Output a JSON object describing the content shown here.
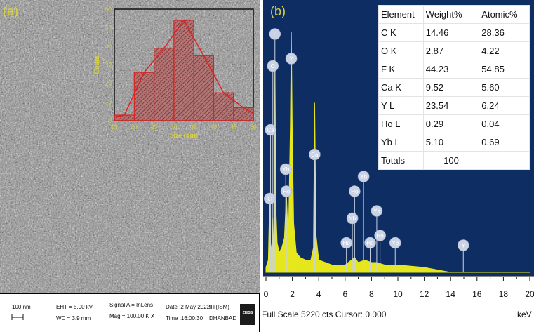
{
  "panel_a": {
    "label": "(a)",
    "info_bar": {
      "scale_bar": "100 nm",
      "eht": "EHT = 5.00 kV",
      "wd": "WD = 3.9 mm",
      "signal": "Signal A = InLens",
      "mag": "Mag = 100.00 K X",
      "date": "Date :2 May 2022",
      "time": "Time :16:00:30",
      "institution_1": "IIT(ISM)",
      "institution_2": "DHANBAD",
      "logo": "ZEISS"
    }
  },
  "panel_b": {
    "label": "(b)",
    "footer": "Full Scale 5220 cts Cursor: 0.000",
    "x_unit": "keV",
    "table": {
      "headers": [
        "Element",
        "Weight%",
        "Atomic%"
      ],
      "rows": [
        [
          "C K",
          "14.46",
          "28.36"
        ],
        [
          "O K",
          "2.87",
          "4.22"
        ],
        [
          "F K",
          "44.23",
          "54.85"
        ],
        [
          "Ca K",
          "9.52",
          "5.60"
        ],
        [
          "Y L",
          "23.54",
          "6.24"
        ],
        [
          "Ho L",
          "0.29",
          "0.04"
        ],
        [
          "Yb L",
          "5.10",
          "0.69"
        ]
      ],
      "totals_label": "Totals",
      "totals_value": "100"
    }
  },
  "colors": {
    "spectrum_bg": "#0e2d62",
    "spectrum_fill": "#e6e61c",
    "histogram_bar": "#b03a3a",
    "histogram_line": "#e02020",
    "label_yellow": "#d8d245"
  },
  "chart_data": [
    {
      "type": "bar",
      "title": "",
      "xlabel": "Size (nm)",
      "ylabel": "Count",
      "xlim": [
        15,
        50
      ],
      "ylim": [
        0,
        60
      ],
      "x_ticks": [
        15,
        20,
        25,
        30,
        35,
        40,
        45,
        50
      ],
      "y_ticks": [
        0,
        10,
        20,
        30,
        40,
        50,
        60
      ],
      "bin_edges": [
        15,
        20,
        25,
        30,
        35,
        40,
        45,
        50
      ],
      "values": [
        3,
        26,
        39,
        54,
        35,
        15,
        7
      ],
      "fit_curve": {
        "type": "line",
        "x": [
          15,
          17.5,
          22.5,
          27.5,
          32.5,
          37.5,
          42.5,
          47.5,
          50
        ],
        "y": [
          2,
          3,
          26,
          39,
          54,
          35,
          15,
          7,
          4
        ]
      }
    },
    {
      "type": "area",
      "title": "",
      "xlabel": "keV",
      "xlim": [
        0,
        20
      ],
      "x_ticks": [
        0,
        2,
        4,
        6,
        8,
        10,
        12,
        14,
        16,
        18,
        20
      ],
      "full_scale_counts": 5220,
      "x": [
        0.0,
        0.18,
        0.28,
        0.35,
        0.45,
        0.52,
        0.6,
        0.68,
        0.76,
        0.85,
        1.0,
        1.2,
        1.4,
        1.55,
        1.7,
        1.85,
        1.92,
        2.0,
        2.1,
        2.3,
        2.6,
        3.0,
        3.4,
        3.6,
        3.69,
        3.8,
        4.0,
        4.5,
        5.0,
        6.0,
        6.72,
        7.0,
        7.5,
        8.0,
        8.4,
        9.0,
        10.0,
        12.0,
        14.0,
        14.96,
        16.0,
        20.0
      ],
      "y": [
        0.02,
        0.05,
        0.3,
        0.12,
        0.08,
        0.22,
        0.06,
        0.85,
        0.25,
        0.12,
        0.08,
        0.1,
        0.14,
        0.32,
        0.12,
        0.6,
        0.98,
        0.55,
        0.2,
        0.08,
        0.06,
        0.05,
        0.05,
        0.1,
        0.69,
        0.15,
        0.05,
        0.04,
        0.03,
        0.03,
        0.06,
        0.04,
        0.05,
        0.04,
        0.04,
        0.03,
        0.03,
        0.02,
        0.0,
        0.0,
        0.0,
        0.0
      ],
      "peak_markers": [
        {
          "label": "C",
          "x": 0.28,
          "level": 0.3
        },
        {
          "label": "O",
          "x": 0.52,
          "level": 0.84
        },
        {
          "label": "F",
          "x": 0.68,
          "level": 0.97
        },
        {
          "label": "Y",
          "x": 1.92,
          "level": 0.87
        },
        {
          "label": "Ca",
          "x": 0.35,
          "level": 0.58
        },
        {
          "label": "Ca",
          "x": 3.69,
          "level": 0.48
        },
        {
          "label": "Yb",
          "x": 1.5,
          "level": 0.42
        },
        {
          "label": "Ho",
          "x": 1.55,
          "level": 0.33
        },
        {
          "label": "Yb",
          "x": 7.4,
          "level": 0.39
        },
        {
          "label": "Ho",
          "x": 6.72,
          "level": 0.33
        },
        {
          "label": "Yb",
          "x": 6.55,
          "level": 0.22
        },
        {
          "label": "Yb",
          "x": 8.4,
          "level": 0.25
        },
        {
          "label": "Ho",
          "x": 6.1,
          "level": 0.12
        },
        {
          "label": "Ho",
          "x": 7.9,
          "level": 0.12
        },
        {
          "label": "Ho",
          "x": 8.65,
          "level": 0.15
        },
        {
          "label": "Yb",
          "x": 9.8,
          "level": 0.12
        },
        {
          "label": "Y",
          "x": 14.96,
          "level": 0.11
        }
      ]
    }
  ]
}
